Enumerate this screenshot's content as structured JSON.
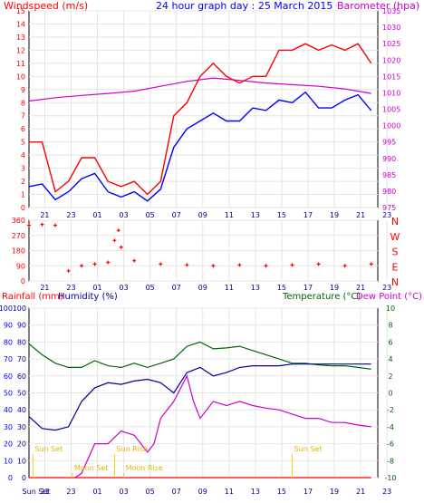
{
  "chart_data": [
    {
      "type": "line",
      "title": "24 hour graph day : 25 March 2015",
      "ylabel": "Windspeed (m/s)",
      "y2label": "Barometer (hpa)",
      "x_ticks": [
        "21",
        "23",
        "01",
        "03",
        "05",
        "07",
        "09",
        "11",
        "13",
        "15",
        "17",
        "19",
        "21",
        "23"
      ],
      "ylim": [
        0,
        15
      ],
      "y_ticks": [
        0,
        1,
        2,
        3,
        4,
        5,
        6,
        7,
        8,
        9,
        10,
        11,
        12,
        13,
        14,
        15
      ],
      "y2lim": [
        975,
        1035
      ],
      "y2_ticks": [
        975,
        980,
        985,
        990,
        995,
        1000,
        1005,
        1010,
        1015,
        1020,
        1025,
        1030,
        1035
      ],
      "grid": true,
      "colors": {
        "gust": "#ff0000",
        "average": "#0000ff",
        "barometer": "#cc00cc"
      },
      "series": [
        {
          "x": [
            0,
            1,
            2,
            3,
            4,
            5,
            6,
            7,
            8,
            9,
            10,
            11,
            12,
            13,
            14,
            15,
            16,
            17,
            18,
            19,
            20,
            21,
            22,
            23,
            24,
            25,
            26
          ],
          "values": [
            1.6,
            1.8,
            0.6,
            1.2,
            2.2,
            2.6,
            1.2,
            0.8,
            1.2,
            0.5,
            1.4,
            4.6,
            6,
            6.6,
            7.2,
            6.6,
            6.6,
            7.6,
            7.4,
            8.2,
            8,
            8.8,
            7.6,
            7.6,
            8.2,
            8.6,
            7.4
          ]
        },
        {
          "x": [
            0,
            1,
            2,
            3,
            4,
            5,
            6,
            7,
            8,
            9,
            10,
            11,
            12,
            13,
            14,
            15,
            16,
            17,
            18,
            19,
            20,
            21,
            22,
            23,
            24,
            25,
            26
          ],
          "values": [
            5,
            5,
            1.2,
            2,
            3.8,
            3.8,
            2,
            1.6,
            2,
            1,
            2,
            7,
            8,
            10,
            11,
            10,
            9.5,
            10,
            10,
            12,
            12,
            12.5,
            12,
            12.4,
            12,
            12.5,
            11
          ]
        },
        {
          "x": [
            0,
            2,
            4,
            6,
            8,
            10,
            12,
            14,
            16,
            18,
            20,
            22,
            24,
            26
          ],
          "values": [
            1007.5,
            1008.5,
            1009.2,
            1009.8,
            1010.5,
            1012,
            1013.5,
            1014.5,
            1013.8,
            1013,
            1012.5,
            1012,
            1011.2,
            1009.8
          ]
        }
      ]
    },
    {
      "type": "scatter",
      "ylabel_right": [
        "N",
        "W",
        "S",
        "E",
        "N"
      ],
      "x_ticks": [
        "21",
        "23",
        "01",
        "03",
        "05",
        "07",
        "09",
        "11",
        "13",
        "15",
        "17",
        "19",
        "21",
        "23"
      ],
      "ylim": [
        0,
        360
      ],
      "y_ticks": [
        0,
        90,
        180,
        270,
        360
      ],
      "grid": true,
      "color": "#ff0000",
      "series": [
        {
          "x": [
            0,
            1,
            2,
            3,
            4,
            5,
            6,
            6.5,
            6.8,
            7,
            8,
            10,
            12,
            14,
            16,
            18,
            20,
            22,
            24,
            26
          ],
          "values": [
            330,
            335,
            330,
            60,
            90,
            100,
            110,
            240,
            300,
            200,
            120,
            100,
            95,
            90,
            95,
            90,
            95,
            100,
            90,
            100
          ]
        }
      ]
    },
    {
      "type": "line",
      "ylabel_left": "Rainfall (mm)",
      "ylabel_left2": "Humidity (%)",
      "ylabel_right": "Temperature (°C)",
      "ylabel_right2": "Dew Point (°C)",
      "x_ticks": [
        "Sun Set",
        "21",
        "23",
        "01",
        "03",
        "05",
        "07",
        "09",
        "11",
        "13",
        "15",
        "17",
        "19",
        "21",
        "23"
      ],
      "ylim": [
        0,
        100
      ],
      "y_ticks": [
        0,
        10,
        20,
        30,
        40,
        50,
        60,
        70,
        80,
        90,
        100
      ],
      "y2lim": [
        -10,
        10
      ],
      "y2_ticks": [
        -10,
        -8,
        -6,
        -4,
        -2,
        0,
        2,
        4,
        6,
        8,
        10
      ],
      "grid": true,
      "colors": {
        "humidity": "#000099",
        "temperature": "#006600",
        "dewpoint": "#cc00cc",
        "rainfall": "#ff0000",
        "events": "#ffcc00"
      },
      "annotations": [
        "Sun Set",
        "Moon Set",
        "Sun Rise",
        "Moon Rise",
        "Sun Set"
      ],
      "series": [
        {
          "x": [
            0,
            1,
            2,
            3,
            4,
            5,
            6,
            7,
            8,
            9,
            10,
            11,
            12,
            13,
            14,
            15,
            16,
            17,
            18,
            19,
            20,
            21,
            22,
            23,
            24,
            25,
            26
          ],
          "values": [
            36,
            29,
            28,
            30,
            45,
            53,
            56,
            55,
            57,
            58,
            56,
            50,
            62,
            65,
            60,
            62,
            65,
            66,
            66,
            66,
            67,
            67,
            67,
            67,
            67,
            67,
            67
          ]
        },
        {
          "x": [
            0,
            1,
            2,
            3,
            4,
            5,
            6,
            7,
            8,
            9,
            10,
            11,
            12,
            13,
            14,
            15,
            16,
            17,
            18,
            19,
            20,
            21,
            22,
            23,
            24,
            25,
            26
          ],
          "values": [
            5.8,
            4.5,
            3.5,
            3,
            3,
            3.8,
            3.2,
            3,
            3.5,
            3,
            3.5,
            4,
            5.5,
            6,
            5.2,
            5.3,
            5.5,
            5,
            4.5,
            4,
            3.5,
            3.5,
            3.3,
            3.2,
            3.2,
            3,
            2.8
          ]
        },
        {
          "x": [
            3.5,
            4,
            5,
            6,
            7,
            8,
            9,
            9.5,
            10,
            11,
            12,
            12.5,
            13,
            14,
            15,
            16,
            17,
            18,
            19,
            20,
            21,
            22,
            23,
            24,
            25,
            26
          ],
          "values": [
            -10,
            -9.5,
            -6,
            -6,
            -4.5,
            -5,
            -7,
            -6,
            -3,
            -1,
            2,
            -1,
            -3,
            -1,
            -1.5,
            -1,
            -1.5,
            -1.8,
            -2,
            -2.5,
            -3,
            -3,
            -3.5,
            -3.5,
            -3.8,
            -4
          ]
        },
        {
          "x": [
            0,
            26
          ],
          "values": [
            0,
            0
          ]
        }
      ]
    }
  ]
}
